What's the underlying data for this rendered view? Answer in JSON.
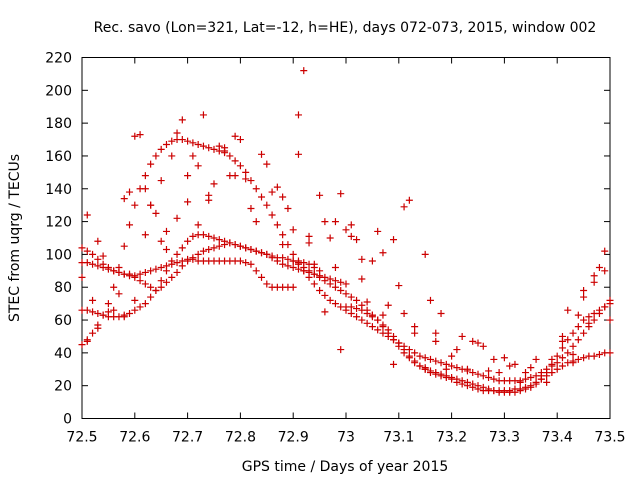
{
  "chart_data": {
    "type": "scatter",
    "title": "Rec. savo (Lon=321, Lat=-12, h=HE), days 072-073, 2015, window 002",
    "xlabel": "GPS time / Days of year 2015",
    "ylabel": "STEC from uqrg / TECUs",
    "xlim": [
      72.5,
      73.5
    ],
    "ylim": [
      0,
      220
    ],
    "xticks": [
      72.5,
      72.6,
      72.7,
      72.8,
      72.9,
      73,
      73.1,
      73.2,
      73.3,
      73.4,
      73.5
    ],
    "xtick_labels": [
      "72.5",
      "72.6",
      "72.7",
      "72.8",
      "72.9",
      "73",
      "73.1",
      "73.2",
      "73.3",
      "73.4",
      "73.5"
    ],
    "yticks": [
      0,
      20,
      40,
      60,
      80,
      100,
      120,
      140,
      160,
      180,
      200,
      220
    ],
    "ytick_labels": [
      "0",
      "20",
      "40",
      "60",
      "80",
      "100",
      "120",
      "140",
      "160",
      "180",
      "200",
      "220"
    ],
    "grid": false,
    "marker": "+",
    "color": "#cc0000",
    "series": [
      {
        "x": [
          72.5,
          72.51,
          72.52,
          72.53,
          72.54,
          72.55,
          72.56,
          72.57,
          72.58,
          72.59,
          72.6,
          72.61,
          72.62,
          72.63,
          72.64,
          72.65,
          72.66,
          72.67,
          72.68,
          72.69,
          72.7,
          72.71,
          72.72,
          72.73,
          72.74,
          72.75,
          72.76,
          72.77,
          72.78,
          72.79,
          72.8,
          72.81,
          72.82,
          72.83,
          72.84,
          72.85,
          72.86,
          72.87,
          72.88,
          72.89,
          72.9,
          72.91,
          72.92,
          72.93,
          72.94,
          72.95,
          72.96,
          72.97,
          72.98,
          72.99,
          73.0
        ],
        "y": [
          104,
          102,
          100,
          97,
          94,
          92,
          90,
          89,
          88,
          87,
          86,
          84,
          82,
          80,
          78,
          80,
          83,
          86,
          89,
          93,
          96,
          98,
          100,
          102,
          103,
          104,
          105,
          106,
          107,
          106,
          105,
          104,
          103,
          102,
          101,
          100,
          98,
          96,
          94,
          93,
          92,
          91,
          90,
          89,
          88,
          87,
          86,
          85,
          84,
          83,
          82
        ]
      },
      {
        "x": [
          72.5,
          72.51,
          72.52,
          72.53,
          72.54,
          72.55,
          72.56,
          72.57,
          72.58,
          72.59,
          72.6,
          72.61,
          72.62,
          72.63,
          72.64,
          72.65,
          72.66,
          72.67,
          72.68,
          72.69,
          72.7,
          72.71,
          72.72,
          72.73,
          72.74,
          72.75,
          72.76,
          72.77,
          72.78,
          72.79,
          72.8,
          72.81,
          72.82,
          72.83,
          72.84,
          72.85,
          72.86,
          72.87,
          72.88,
          72.89,
          72.9,
          72.91,
          72.92,
          72.93,
          72.94,
          72.95
        ],
        "y": [
          66,
          66,
          65,
          64,
          63,
          62,
          62,
          62,
          63,
          64,
          66,
          68,
          70,
          74,
          78,
          84,
          90,
          96,
          100,
          104,
          108,
          111,
          112,
          112,
          111,
          110,
          109,
          108,
          107,
          106,
          105,
          104,
          103,
          102,
          101,
          100,
          99,
          98,
          98,
          97,
          96,
          96,
          95,
          94,
          92,
          90
        ]
      },
      {
        "x": [
          72.5,
          72.51,
          72.52,
          72.53,
          72.54,
          72.55,
          72.56,
          72.57,
          72.58,
          72.59,
          72.6,
          72.61,
          72.62,
          72.63,
          72.64,
          72.65,
          72.66,
          72.67,
          72.68,
          72.69,
          72.7,
          72.71,
          72.72,
          72.73,
          72.74,
          72.75,
          72.76,
          72.77,
          72.78,
          72.79,
          72.8,
          72.81,
          72.82,
          72.83,
          72.84,
          72.85,
          72.86,
          72.87,
          72.88,
          72.89,
          72.9
        ],
        "y": [
          95,
          95,
          94,
          93,
          92,
          91,
          90,
          89,
          88,
          88,
          87,
          88,
          89,
          90,
          91,
          92,
          93,
          94,
          95,
          96,
          97,
          97,
          96,
          96,
          96,
          96,
          96,
          96,
          96,
          96,
          96,
          95,
          94,
          90,
          86,
          82,
          80,
          80,
          80,
          80,
          80
        ]
      },
      {
        "x": [
          72.5,
          72.51,
          72.52,
          72.53,
          72.54,
          72.55,
          72.56,
          72.57,
          72.58,
          72.59,
          72.6,
          72.61,
          72.62,
          72.63,
          72.64,
          72.65,
          72.66,
          72.67,
          72.68,
          72.69,
          72.7,
          72.71,
          72.72,
          72.73,
          72.74,
          72.75,
          72.76,
          72.77,
          72.78,
          72.79,
          72.8,
          72.81,
          72.82,
          72.83,
          72.84,
          72.85,
          72.86,
          72.87,
          72.88,
          72.89,
          72.9,
          72.91,
          72.92,
          72.93,
          72.94,
          72.95,
          72.96,
          72.97,
          72.98,
          72.99,
          73.0,
          73.01,
          73.02,
          73.03,
          73.04,
          73.05,
          73.06,
          73.07,
          73.08,
          73.09,
          73.1,
          73.11,
          73.12,
          73.13,
          73.14,
          73.15,
          73.16,
          73.17,
          73.18,
          73.19,
          73.2,
          73.21,
          73.22,
          73.23,
          73.24,
          73.25,
          73.26,
          73.27,
          73.28,
          73.29,
          73.3,
          73.31,
          73.32,
          73.33,
          73.34,
          73.35,
          73.36,
          73.37,
          73.38,
          73.39,
          73.4,
          73.41,
          73.42,
          73.43,
          73.44,
          73.45,
          73.46,
          73.47,
          73.48,
          73.49,
          73.5
        ],
        "y": [
          45,
          48,
          52,
          57,
          63,
          70,
          80,
          92,
          105,
          118,
          130,
          140,
          148,
          155,
          160,
          164,
          167,
          169,
          170,
          170,
          169,
          168,
          167,
          166,
          165,
          164,
          163,
          162,
          160,
          157,
          154,
          150,
          145,
          140,
          135,
          130,
          124,
          118,
          112,
          106,
          100,
          95,
          90,
          86,
          82,
          78,
          75,
          72,
          70,
          68,
          66,
          64,
          62,
          60,
          58,
          56,
          54,
          52,
          50,
          48,
          46,
          44,
          42,
          40,
          38,
          37,
          36,
          35,
          34,
          33,
          32,
          31,
          30,
          29,
          28,
          27,
          26,
          25,
          24,
          23,
          23,
          23,
          23,
          23,
          24,
          25,
          26,
          28,
          30,
          32,
          34,
          37,
          40,
          44,
          48,
          52,
          56,
          60,
          64,
          68,
          72
        ]
      },
      {
        "x": [
          72.9,
          72.91,
          72.92,
          72.93,
          72.94,
          72.95,
          72.96,
          72.97,
          72.98,
          72.99,
          73.0,
          73.01,
          73.02,
          73.03,
          73.04,
          73.05,
          73.06,
          73.07,
          73.08,
          73.09,
          73.1,
          73.11,
          73.12,
          73.13,
          73.14,
          73.15,
          73.16,
          73.17,
          73.18,
          73.19,
          73.2,
          73.21,
          73.22,
          73.23,
          73.24,
          73.25,
          73.26,
          73.27,
          73.28,
          73.29,
          73.3,
          73.31,
          73.32,
          73.33,
          73.34,
          73.35,
          73.36,
          73.37,
          73.38,
          73.39,
          73.4,
          73.41,
          73.42,
          73.43,
          73.44,
          73.45,
          73.46,
          73.47,
          73.48,
          73.49,
          73.5
        ],
        "y": [
          96,
          94,
          92,
          90,
          88,
          86,
          84,
          82,
          80,
          78,
          76,
          74,
          72,
          69,
          66,
          63,
          60,
          57,
          54,
          50,
          46,
          42,
          38,
          35,
          32,
          30,
          28,
          27,
          26,
          25,
          24,
          22,
          21,
          20,
          19,
          18,
          17,
          17,
          17,
          17,
          17,
          17,
          18,
          18,
          19,
          20,
          22,
          24,
          26,
          28,
          30,
          32,
          34,
          35,
          36,
          37,
          38,
          38,
          39,
          40,
          40
        ]
      },
      {
        "x": [
          73.0,
          73.01,
          73.02,
          73.03,
          73.04,
          73.05,
          73.06,
          73.07,
          73.08,
          73.09,
          73.1,
          73.11,
          73.12,
          73.13,
          73.14,
          73.15,
          73.16,
          73.17,
          73.18,
          73.19,
          73.2,
          73.21,
          73.22,
          73.23,
          73.24,
          73.25,
          73.26,
          73.27,
          73.28,
          73.29,
          73.3,
          73.31,
          73.32,
          73.33,
          73.34,
          73.35,
          73.36,
          73.37,
          73.38,
          73.39,
          73.4,
          73.41,
          73.42,
          73.43,
          73.44,
          73.45,
          73.46,
          73.47,
          73.48,
          73.49,
          73.5
        ],
        "y": [
          68,
          68,
          67,
          66,
          64,
          62,
          60,
          56,
          52,
          48,
          44,
          40,
          37,
          34,
          32,
          30,
          29,
          28,
          27,
          26,
          25,
          24,
          23,
          22,
          21,
          20,
          19,
          18,
          17,
          16,
          16,
          16,
          16,
          17,
          18,
          19,
          21,
          24,
          28,
          33,
          38,
          43,
          48,
          52,
          56,
          60,
          62,
          64,
          66,
          68,
          70
        ]
      },
      {
        "x": [
          72.5,
          72.51,
          72.52,
          72.53,
          72.54,
          72.55,
          72.57,
          72.58,
          72.59,
          72.6,
          72.61,
          72.62,
          72.63,
          72.64,
          72.65,
          72.66,
          72.67,
          72.68,
          72.69,
          72.7,
          72.71,
          72.72,
          72.73,
          72.74,
          72.75,
          72.76,
          72.77,
          72.78,
          72.79,
          72.8,
          72.82,
          72.84,
          72.85,
          72.87,
          72.88,
          72.89,
          72.9,
          72.91,
          72.92,
          72.93,
          72.95,
          72.96,
          72.97,
          72.98,
          72.99,
          73.0,
          73.01,
          73.02,
          73.03,
          73.04,
          73.05,
          73.06,
          73.07,
          73.08,
          73.09,
          73.1,
          73.11,
          73.12,
          73.13,
          73.15,
          73.16,
          73.17,
          73.18,
          73.2,
          73.22,
          73.24,
          73.26,
          73.28,
          73.3,
          73.32,
          73.34,
          73.36,
          73.38,
          73.39,
          73.41,
          73.42,
          73.43,
          73.44,
          73.45,
          73.46,
          73.47,
          73.48,
          73.49,
          73.5
        ],
        "y": [
          86,
          124,
          72,
          108,
          99,
          65,
          76,
          134,
          138,
          172,
          173,
          140,
          130,
          125,
          108,
          103,
          160,
          174,
          182,
          148,
          160,
          154,
          185,
          136,
          143,
          166,
          163,
          148,
          172,
          170,
          128,
          161,
          155,
          141,
          135,
          128,
          115,
          185,
          212,
          111,
          136,
          120,
          110,
          92,
          137,
          115,
          111,
          109,
          97,
          71,
          96,
          114,
          101,
          69,
          109,
          81,
          129,
          133,
          56,
          100,
          72,
          47,
          64,
          38,
          50,
          47,
          44,
          36,
          37,
          33,
          28,
          36,
          22,
          36,
          50,
          66,
          34,
          63,
          78,
          58,
          87,
          92,
          102,
          60
        ]
      },
      {
        "x": [
          72.51,
          72.53,
          72.56,
          72.58,
          72.6,
          72.62,
          72.63,
          72.65,
          72.66,
          72.68,
          72.7,
          72.72,
          72.74,
          72.77,
          72.79,
          72.81,
          72.83,
          72.86,
          72.88,
          72.91,
          72.93,
          72.94,
          72.96,
          72.98,
          72.99,
          73.01,
          73.03,
          73.05,
          73.07,
          73.09,
          73.11,
          73.13,
          73.15,
          73.17,
          73.19,
          73.21,
          73.23,
          73.25,
          73.27,
          73.29,
          73.31,
          73.33,
          73.35,
          73.37,
          73.39,
          73.41,
          73.43,
          73.45,
          73.47,
          73.49
        ],
        "y": [
          47,
          55,
          66,
          62,
          72,
          112,
          130,
          145,
          114,
          122,
          132,
          118,
          133,
          165,
          148,
          146,
          120,
          138,
          106,
          161,
          107,
          94,
          65,
          120,
          42,
          118,
          85,
          63,
          63,
          33,
          64,
          52,
          31,
          52,
          30,
          42,
          30,
          46,
          29,
          28,
          32,
          22,
          31,
          26,
          28,
          47,
          39,
          74,
          83,
          90
        ]
      }
    ]
  }
}
